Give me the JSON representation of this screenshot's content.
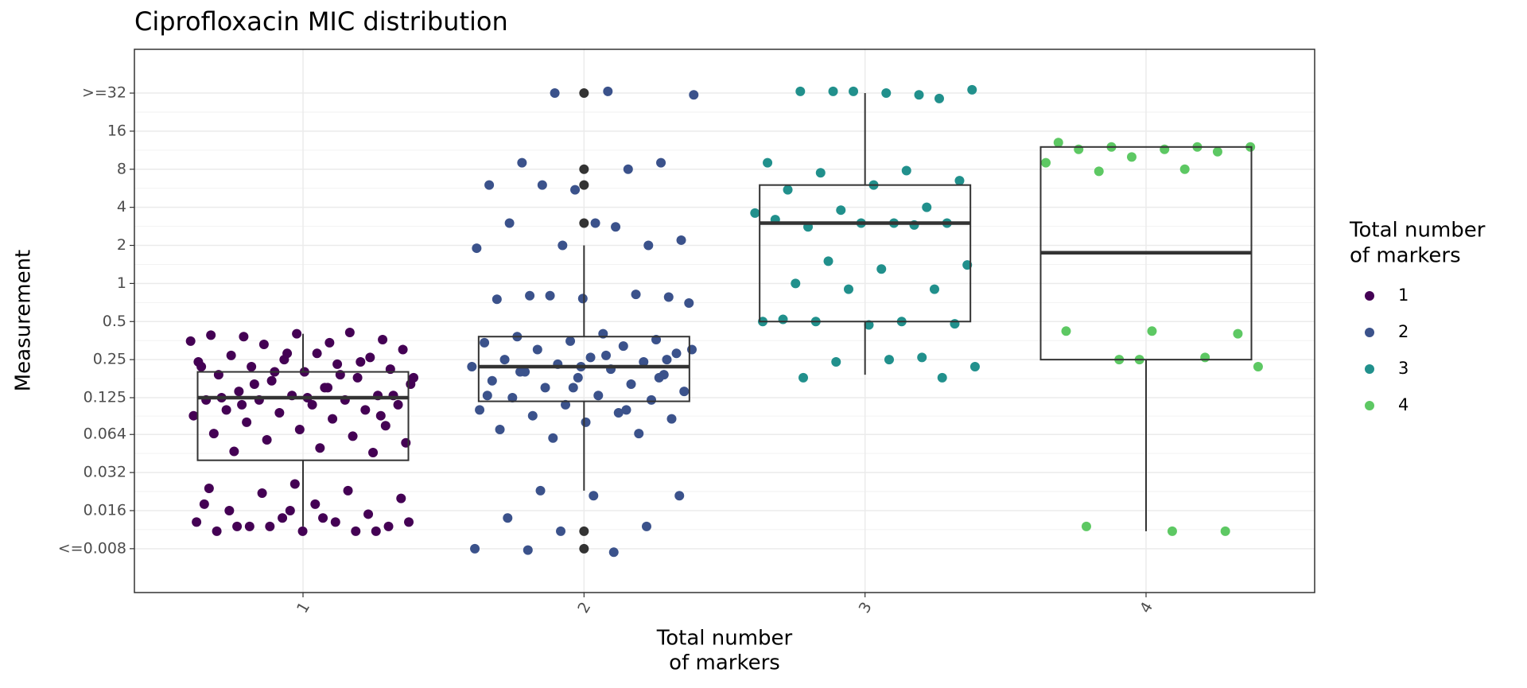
{
  "chart_data": {
    "type": "box",
    "title": "Ciprofloxacin MIC distribution",
    "x_label": [
      "Total number",
      "of markers"
    ],
    "y_label": "Measurement",
    "legend_title": [
      "Total number",
      "of markers"
    ],
    "legend_position": "right",
    "log_scale": "log2",
    "grid": true,
    "categories": [
      "1",
      "2",
      "3",
      "4"
    ],
    "ylim": [
      0.0036,
      71
    ],
    "yticks": [
      {
        "value": 0.008,
        "label": "<=0.008"
      },
      0.016,
      0.032,
      0.064,
      0.125,
      0.25,
      0.5,
      1,
      2,
      4,
      8,
      16,
      {
        "value": 32,
        "label": ">=32"
      }
    ],
    "box_color": "#333333",
    "outlier_color": "#333333",
    "series": [
      {
        "name": "1",
        "color": "#440154",
        "box": {
          "whisker_low": 0.012,
          "q1": 0.04,
          "median": 0.125,
          "q3": 0.2,
          "whisker_high": 0.4,
          "outliers": []
        },
        "values": [
          0.35,
          0.34,
          0.38,
          0.36,
          0.4,
          0.39,
          0.41,
          0.33,
          0.3,
          0.28,
          0.27,
          0.26,
          0.25,
          0.24,
          0.23,
          0.22,
          0.21,
          0.2,
          0.19,
          0.18,
          0.17,
          0.16,
          0.15,
          0.14,
          0.13,
          0.13,
          0.12,
          0.12,
          0.12,
          0.11,
          0.11,
          0.1,
          0.1,
          0.095,
          0.09,
          0.085,
          0.08,
          0.075,
          0.07,
          0.065,
          0.062,
          0.058,
          0.055,
          0.05,
          0.047,
          0.046,
          0.28,
          0.22,
          0.19,
          0.16,
          0.13,
          0.125,
          0.125,
          0.24,
          0.2,
          0.18,
          0.15,
          0.11,
          0.09,
          0.026,
          0.024,
          0.023,
          0.022,
          0.02,
          0.018,
          0.016,
          0.015,
          0.014,
          0.013,
          0.013,
          0.012,
          0.012,
          0.011,
          0.011,
          0.011,
          0.012,
          0.013,
          0.014,
          0.012,
          0.011,
          0.016,
          0.018
        ]
      },
      {
        "name": "2",
        "color": "#3b528b",
        "box": {
          "whisker_low": 0.023,
          "q1": 0.117,
          "median": 0.22,
          "q3": 0.38,
          "whisker_high": 2,
          "outliers": [
            32,
            8,
            6,
            3,
            0.011,
            0.008
          ]
        },
        "values": [
          32,
          31,
          33,
          9,
          9,
          5.5,
          6,
          8,
          6,
          2.2,
          3,
          3,
          2,
          2,
          1.9,
          2.8,
          0.8,
          0.78,
          0.76,
          0.75,
          0.82,
          0.8,
          0.7,
          0.4,
          0.38,
          0.36,
          0.35,
          0.34,
          0.32,
          0.3,
          0.28,
          0.26,
          0.25,
          0.24,
          0.23,
          0.22,
          0.21,
          0.2,
          0.19,
          0.18,
          0.17,
          0.16,
          0.15,
          0.14,
          0.13,
          0.125,
          0.12,
          0.11,
          0.1,
          0.095,
          0.09,
          0.085,
          0.08,
          0.07,
          0.065,
          0.06,
          0.3,
          0.27,
          0.2,
          0.18,
          0.15,
          0.13,
          0.1,
          0.023,
          0.021,
          0.021,
          0.014,
          0.012,
          0.011,
          0.008,
          0.0075,
          0.0078,
          0.25,
          0.22
        ]
      },
      {
        "name": "3",
        "color": "#21908c",
        "box": {
          "whisker_low": 0.19,
          "q1": 0.5,
          "median": 3,
          "q3": 6,
          "whisker_high": 32,
          "outliers": []
        },
        "values": [
          31,
          33,
          34,
          32,
          33,
          29,
          33,
          9,
          7.8,
          7.5,
          6.5,
          6,
          5.5,
          4,
          3.8,
          3.6,
          3,
          2.8,
          3,
          3,
          3.2,
          2.9,
          1.5,
          1.4,
          1.3,
          1,
          0.9,
          0.9,
          0.5,
          0.5,
          0.5,
          0.48,
          0.47,
          0.52,
          0.26,
          0.24,
          0.22,
          0.25,
          0.18,
          0.18
        ]
      },
      {
        "name": "4",
        "color": "#5dc863",
        "box": {
          "whisker_low": 0.011,
          "q1": 0.25,
          "median": 1.75,
          "q3": 12,
          "whisker_high": 12,
          "outliers": []
        },
        "values": [
          13,
          12,
          12,
          12,
          11.5,
          11.5,
          11,
          10,
          9,
          8,
          7.7,
          0.4,
          0.42,
          0.42,
          0.26,
          0.25,
          0.22,
          0.011,
          0.012,
          0.011,
          0.25
        ]
      }
    ]
  }
}
